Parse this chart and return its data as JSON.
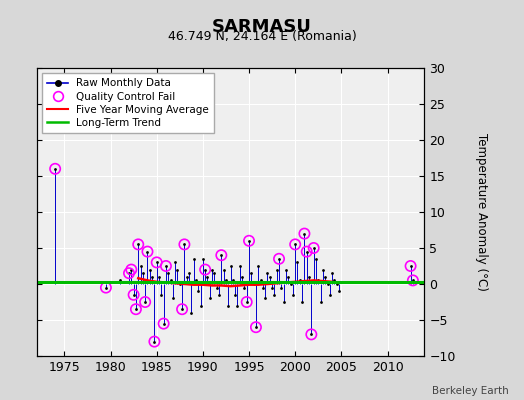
{
  "title": "SARMASU",
  "subtitle": "46.749 N, 24.164 E (Romania)",
  "ylabel": "Temperature Anomaly (°C)",
  "credit": "Berkeley Earth",
  "xlim": [
    1972,
    2014
  ],
  "ylim": [
    -10,
    30
  ],
  "yticks": [
    -10,
    -5,
    0,
    5,
    10,
    15,
    20,
    25,
    30
  ],
  "xticks": [
    1975,
    1980,
    1985,
    1990,
    1995,
    2000,
    2005,
    2010
  ],
  "bg_color": "#d8d8d8",
  "plot_bg_color": "#efefef",
  "grid_color": "#ffffff",
  "raw_line_color": "#0000cc",
  "raw_dot_color": "#000000",
  "qc_fail_color": "#ff00ff",
  "moving_avg_color": "#ff0000",
  "trend_color": "#00bb00",
  "trend_y": 0.3,
  "raw_data": [
    [
      1974.0,
      16.0
    ],
    [
      1979.5,
      -0.5
    ],
    [
      1981.0,
      0.5
    ],
    [
      1982.0,
      1.5
    ],
    [
      1982.25,
      2.0
    ],
    [
      1982.5,
      -1.5
    ],
    [
      1982.75,
      -3.5
    ],
    [
      1983.0,
      5.5
    ],
    [
      1983.25,
      2.5
    ],
    [
      1983.5,
      1.5
    ],
    [
      1983.75,
      -2.5
    ],
    [
      1984.0,
      4.5
    ],
    [
      1984.25,
      2.0
    ],
    [
      1984.5,
      1.0
    ],
    [
      1984.75,
      -8.0
    ],
    [
      1985.0,
      3.0
    ],
    [
      1985.25,
      1.0
    ],
    [
      1985.5,
      -1.5
    ],
    [
      1985.75,
      -5.5
    ],
    [
      1986.0,
      2.5
    ],
    [
      1986.25,
      1.5
    ],
    [
      1986.5,
      0.5
    ],
    [
      1986.75,
      -2.0
    ],
    [
      1987.0,
      3.0
    ],
    [
      1987.25,
      2.0
    ],
    [
      1987.5,
      0.0
    ],
    [
      1987.75,
      -3.5
    ],
    [
      1988.0,
      5.5
    ],
    [
      1988.25,
      1.0
    ],
    [
      1988.5,
      1.5
    ],
    [
      1988.75,
      -4.0
    ],
    [
      1989.0,
      3.5
    ],
    [
      1989.25,
      0.5
    ],
    [
      1989.5,
      -1.0
    ],
    [
      1989.75,
      -3.0
    ],
    [
      1990.0,
      3.5
    ],
    [
      1990.25,
      2.0
    ],
    [
      1990.5,
      1.0
    ],
    [
      1990.75,
      -2.0
    ],
    [
      1991.0,
      2.0
    ],
    [
      1991.25,
      1.5
    ],
    [
      1991.5,
      -0.5
    ],
    [
      1991.75,
      -1.5
    ],
    [
      1992.0,
      4.0
    ],
    [
      1992.25,
      2.0
    ],
    [
      1992.5,
      0.5
    ],
    [
      1992.75,
      -3.0
    ],
    [
      1993.0,
      2.5
    ],
    [
      1993.25,
      0.5
    ],
    [
      1993.5,
      -1.5
    ],
    [
      1993.75,
      -3.0
    ],
    [
      1994.0,
      2.5
    ],
    [
      1994.25,
      1.0
    ],
    [
      1994.5,
      -0.5
    ],
    [
      1994.75,
      -2.5
    ],
    [
      1995.0,
      6.0
    ],
    [
      1995.25,
      1.5
    ],
    [
      1995.5,
      0.0
    ],
    [
      1995.75,
      -6.0
    ],
    [
      1996.0,
      2.5
    ],
    [
      1996.25,
      0.5
    ],
    [
      1996.5,
      -0.5
    ],
    [
      1996.75,
      -2.0
    ],
    [
      1997.0,
      1.5
    ],
    [
      1997.25,
      1.0
    ],
    [
      1997.5,
      -0.5
    ],
    [
      1997.75,
      -1.5
    ],
    [
      1998.0,
      2.0
    ],
    [
      1998.25,
      3.5
    ],
    [
      1998.5,
      -0.5
    ],
    [
      1998.75,
      -2.5
    ],
    [
      1999.0,
      2.0
    ],
    [
      1999.25,
      1.0
    ],
    [
      1999.5,
      0.0
    ],
    [
      1999.75,
      -1.5
    ],
    [
      2000.0,
      5.5
    ],
    [
      2000.25,
      3.0
    ],
    [
      2000.5,
      0.5
    ],
    [
      2000.75,
      -2.5
    ],
    [
      2001.0,
      7.0
    ],
    [
      2001.25,
      4.5
    ],
    [
      2001.5,
      1.0
    ],
    [
      2001.75,
      -7.0
    ],
    [
      2002.0,
      5.0
    ],
    [
      2002.25,
      3.5
    ],
    [
      2002.5,
      0.5
    ],
    [
      2002.75,
      -2.5
    ],
    [
      2003.0,
      2.0
    ],
    [
      2003.25,
      1.0
    ],
    [
      2003.5,
      0.0
    ],
    [
      2003.75,
      -1.5
    ],
    [
      2004.0,
      1.5
    ],
    [
      2004.25,
      0.5
    ],
    [
      2004.5,
      0.0
    ],
    [
      2004.75,
      -1.0
    ],
    [
      2012.5,
      2.5
    ],
    [
      2012.75,
      0.5
    ]
  ],
  "qc_fail_points": [
    [
      1974.0,
      16.0
    ],
    [
      1979.5,
      -0.5
    ],
    [
      1982.0,
      1.5
    ],
    [
      1982.25,
      2.0
    ],
    [
      1982.5,
      -1.5
    ],
    [
      1982.75,
      -3.5
    ],
    [
      1983.0,
      5.5
    ],
    [
      1983.75,
      -2.5
    ],
    [
      1984.0,
      4.5
    ],
    [
      1984.75,
      -8.0
    ],
    [
      1985.0,
      3.0
    ],
    [
      1985.75,
      -5.5
    ],
    [
      1986.0,
      2.5
    ],
    [
      1987.75,
      -3.5
    ],
    [
      1988.0,
      5.5
    ],
    [
      1990.25,
      2.0
    ],
    [
      1992.0,
      4.0
    ],
    [
      1994.75,
      -2.5
    ],
    [
      1995.0,
      6.0
    ],
    [
      1995.75,
      -6.0
    ],
    [
      1998.25,
      3.5
    ],
    [
      2000.0,
      5.5
    ],
    [
      2001.0,
      7.0
    ],
    [
      2001.25,
      4.5
    ],
    [
      2001.75,
      -7.0
    ],
    [
      2002.0,
      5.0
    ],
    [
      2012.5,
      2.5
    ],
    [
      2012.75,
      0.5
    ]
  ],
  "moving_avg": [
    [
      1983.0,
      0.8
    ],
    [
      1983.5,
      0.65
    ],
    [
      1984.0,
      0.5
    ],
    [
      1984.5,
      0.4
    ],
    [
      1985.0,
      0.3
    ],
    [
      1985.5,
      0.25
    ],
    [
      1986.0,
      0.2
    ],
    [
      1986.5,
      0.15
    ],
    [
      1987.0,
      0.1
    ],
    [
      1987.5,
      0.05
    ],
    [
      1988.0,
      0.0
    ],
    [
      1988.5,
      -0.05
    ],
    [
      1989.0,
      -0.1
    ],
    [
      1989.5,
      -0.1
    ],
    [
      1990.0,
      -0.1
    ],
    [
      1990.5,
      -0.15
    ],
    [
      1991.0,
      -0.2
    ],
    [
      1991.5,
      -0.2
    ],
    [
      1992.0,
      -0.2
    ],
    [
      1992.5,
      -0.25
    ],
    [
      1993.0,
      -0.3
    ],
    [
      1993.5,
      -0.25
    ],
    [
      1994.0,
      -0.2
    ],
    [
      1994.5,
      -0.15
    ],
    [
      1995.0,
      -0.1
    ],
    [
      1995.5,
      -0.1
    ],
    [
      1996.0,
      -0.1
    ],
    [
      1996.5,
      -0.05
    ],
    [
      1997.0,
      0.0
    ],
    [
      1997.5,
      0.05
    ],
    [
      1998.0,
      0.1
    ],
    [
      1998.5,
      0.15
    ],
    [
      1999.0,
      0.2
    ],
    [
      1999.5,
      0.25
    ],
    [
      2000.0,
      0.3
    ],
    [
      2000.5,
      0.35
    ],
    [
      2001.0,
      0.4
    ],
    [
      2001.5,
      0.45
    ],
    [
      2002.0,
      0.5
    ],
    [
      2002.5,
      0.45
    ],
    [
      2003.0,
      0.4
    ],
    [
      2003.5,
      0.35
    ],
    [
      2004.0,
      0.3
    ]
  ]
}
